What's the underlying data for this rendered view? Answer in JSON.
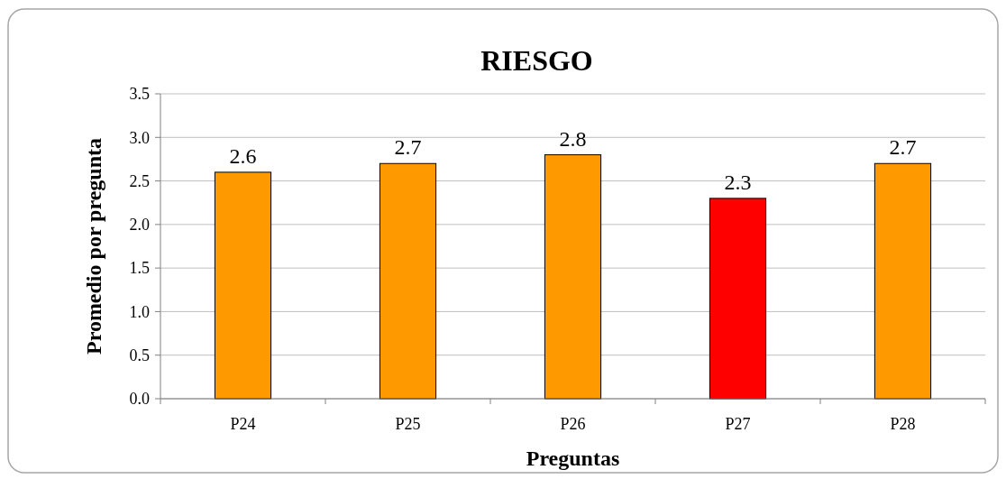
{
  "chart_data": {
    "type": "bar",
    "title": "RIESGO",
    "xlabel": "Preguntas",
    "ylabel": "Promedio por pregunta",
    "categories": [
      "P24",
      "P25",
      "P26",
      "P27",
      "P28"
    ],
    "values": [
      2.6,
      2.7,
      2.8,
      2.3,
      2.7
    ],
    "colors": [
      "#ff9900",
      "#ff9900",
      "#ff9900",
      "#ff0000",
      "#ff9900"
    ],
    "ylim": [
      0,
      3.5
    ],
    "yticks": [
      {
        "value": 0,
        "label": "0.0"
      },
      0.5,
      {
        "value": 1,
        "label": "1.0"
      },
      1.5,
      {
        "value": 2,
        "label": "2.0"
      },
      2.5,
      {
        "value": 3,
        "label": "3.0"
      },
      3.5
    ],
    "grid": "y",
    "data_labels": true
  }
}
